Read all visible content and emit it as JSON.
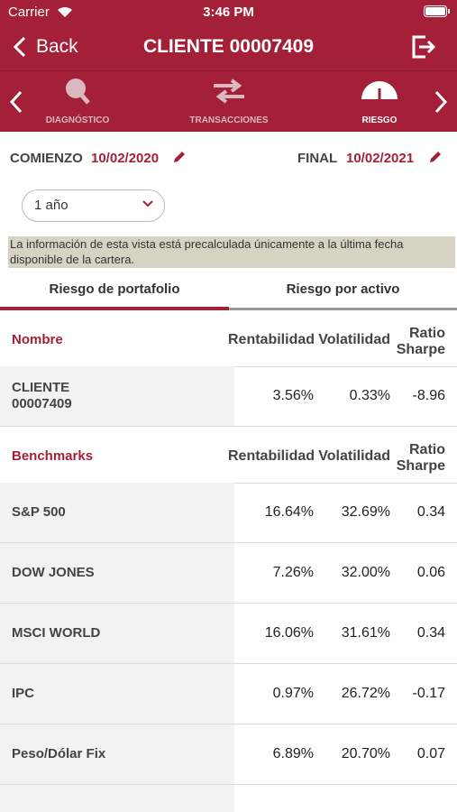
{
  "status_bar": {
    "carrier": "Carrier",
    "time": "3:46 PM"
  },
  "nav": {
    "back": "Back",
    "title": "CLIENTE 00007409"
  },
  "tabs": [
    "DIAGNÓSTICO",
    "TRANSACCIONES",
    "RIESGO"
  ],
  "dates": {
    "start_label": "COMIENZO",
    "start_value": "10/02/2020",
    "end_label": "FINAL",
    "end_value": "10/02/2021"
  },
  "period": "1 año",
  "notice": "La información de esta vista está precalculada únicamente a la última fecha disponible de la cartera.",
  "view_tabs": [
    "Riesgo de portafolio",
    "Riesgo por activo"
  ],
  "portfolio": {
    "header": [
      "Nombre",
      "Rentabilidad",
      "Volatilidad",
      "Ratio Sharpe"
    ],
    "rows": [
      [
        "CLIENTE 00007409",
        "3.56%",
        "0.33%",
        "-8.96"
      ]
    ]
  },
  "benchmarks": {
    "header": [
      "Benchmarks",
      "Rentabilidad",
      "Volatilidad",
      "Ratio Sharpe"
    ],
    "rows": [
      [
        "S&P 500",
        "16.64%",
        "32.69%",
        "0.34"
      ],
      [
        "DOW JONES",
        "7.26%",
        "32.00%",
        "0.06"
      ],
      [
        "MSCI WORLD",
        "16.06%",
        "31.61%",
        "0.34"
      ],
      [
        "IPC",
        "0.97%",
        "26.72%",
        "-0.17"
      ],
      [
        "Peso/Dólar Fix",
        "6.89%",
        "20.70%",
        "0.07"
      ]
    ]
  }
}
